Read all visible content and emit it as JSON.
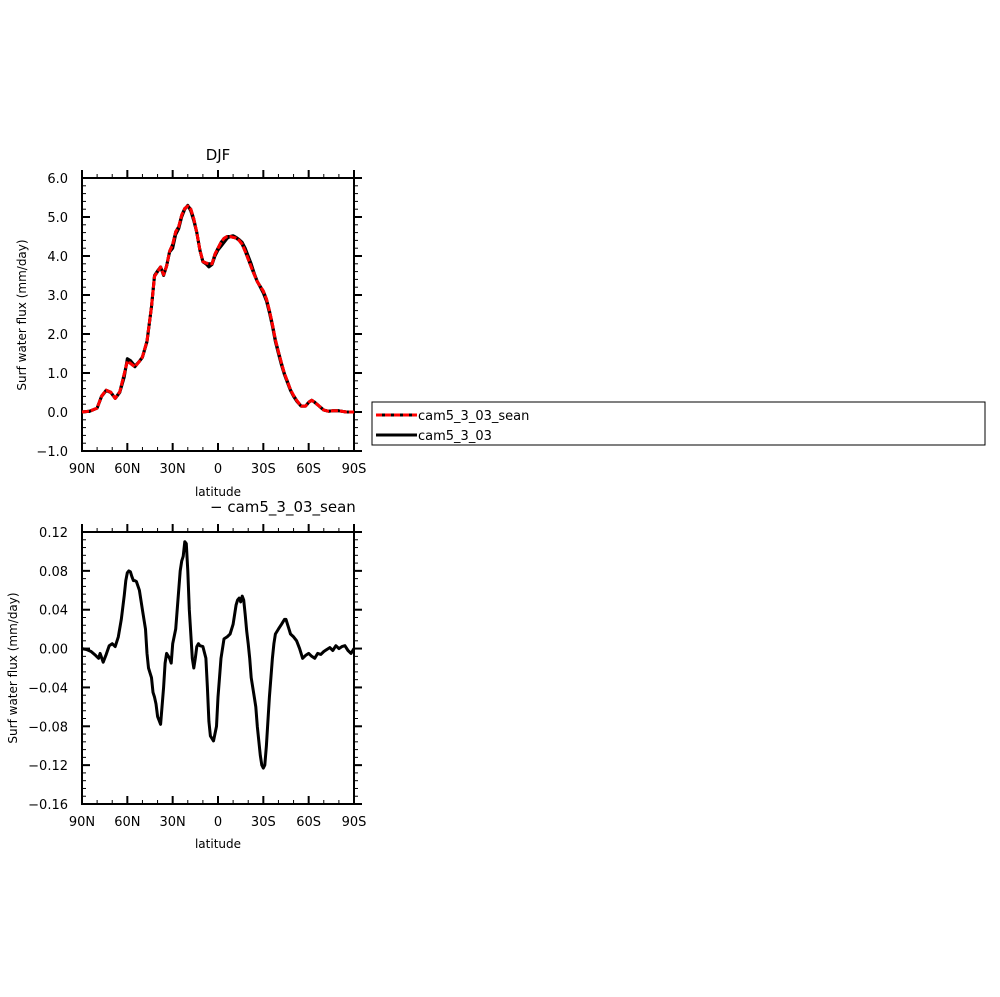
{
  "chart_data": [
    {
      "type": "line",
      "title": "DJF",
      "xlabel": "latitude",
      "ylabel": "Surf water flux (mm/day)",
      "xlim": [
        90,
        -90
      ],
      "ylim": [
        -1.0,
        6.0
      ],
      "x_ticks": [
        90,
        60,
        30,
        0,
        -30,
        -60,
        -90
      ],
      "x_tick_labels": [
        "90N",
        "60N",
        "30N",
        "0",
        "30S",
        "60S",
        "90S"
      ],
      "y_ticks": [
        -1.0,
        0.0,
        1.0,
        2.0,
        3.0,
        4.0,
        5.0,
        6.0
      ],
      "y_tick_labels": [
        "−1.0",
        "0.0",
        "1.0",
        "2.0",
        "3.0",
        "4.0",
        "5.0",
        "6.0"
      ],
      "grid": false,
      "legend_placement": "right",
      "x": [
        90,
        85,
        80,
        77,
        74,
        71,
        68,
        65,
        62,
        60,
        58,
        55,
        52,
        50,
        47,
        44,
        42,
        40,
        38,
        36,
        34,
        32,
        30,
        28,
        26,
        24,
        22,
        20,
        18,
        16,
        14,
        12,
        10,
        8,
        6,
        4,
        2,
        0,
        -2,
        -4,
        -6,
        -8,
        -10,
        -12,
        -14,
        -16,
        -18,
        -20,
        -22,
        -24,
        -26,
        -28,
        -30,
        -32,
        -34,
        -36,
        -38,
        -40,
        -42,
        -44,
        -46,
        -48,
        -50,
        -52,
        -55,
        -58,
        -60,
        -62,
        -64,
        -67,
        -70,
        -73,
        -76,
        -80,
        -85,
        -90
      ],
      "series": [
        {
          "name": "cam5_3_03",
          "color": "#000000",
          "dashed": false,
          "values": [
            0.0,
            0.02,
            0.1,
            0.4,
            0.55,
            0.5,
            0.35,
            0.5,
            0.9,
            1.37,
            1.32,
            1.18,
            1.3,
            1.4,
            1.8,
            2.7,
            3.5,
            3.62,
            3.72,
            3.5,
            3.75,
            4.1,
            4.2,
            4.55,
            4.7,
            5.0,
            5.2,
            5.3,
            5.15,
            4.9,
            4.6,
            4.15,
            3.85,
            3.8,
            3.72,
            3.78,
            4.0,
            4.15,
            4.25,
            4.35,
            4.45,
            4.5,
            4.52,
            4.48,
            4.42,
            4.35,
            4.2,
            4.0,
            3.8,
            3.55,
            3.35,
            3.2,
            3.05,
            2.85,
            2.55,
            2.2,
            1.8,
            1.5,
            1.2,
            0.95,
            0.75,
            0.55,
            0.4,
            0.28,
            0.15,
            0.15,
            0.25,
            0.3,
            0.25,
            0.15,
            0.05,
            0.02,
            0.03,
            0.03,
            0.0,
            0.0
          ]
        },
        {
          "name": "cam5_3_03_sean",
          "color": "#ff0000",
          "dashed": true,
          "values": [
            0.0,
            0.02,
            0.1,
            0.41,
            0.56,
            0.51,
            0.35,
            0.52,
            0.98,
            1.3,
            1.25,
            1.16,
            1.3,
            1.41,
            1.82,
            2.7,
            3.48,
            3.6,
            3.72,
            3.52,
            3.74,
            4.12,
            4.3,
            4.62,
            4.75,
            5.05,
            5.22,
            5.28,
            5.2,
            4.95,
            4.6,
            4.15,
            3.86,
            3.82,
            3.8,
            3.8,
            4.05,
            4.2,
            4.35,
            4.45,
            4.5,
            4.5,
            4.48,
            4.46,
            4.4,
            4.3,
            4.12,
            3.92,
            3.72,
            3.52,
            3.34,
            3.22,
            3.1,
            2.9,
            2.6,
            2.25,
            1.85,
            1.55,
            1.25,
            0.98,
            0.78,
            0.57,
            0.42,
            0.3,
            0.15,
            0.15,
            0.25,
            0.3,
            0.25,
            0.15,
            0.05,
            0.02,
            0.03,
            0.03,
            0.0,
            0.0
          ]
        }
      ]
    },
    {
      "type": "line",
      "title": "− cam5_3_03_sean",
      "xlabel": "latitude",
      "ylabel": "Surf water flux (mm/day)",
      "xlim": [
        90,
        -90
      ],
      "ylim": [
        -0.16,
        0.12
      ],
      "x_ticks": [
        90,
        60,
        30,
        0,
        -30,
        -60,
        -90
      ],
      "x_tick_labels": [
        "90N",
        "60N",
        "30N",
        "0",
        "30S",
        "60S",
        "90S"
      ],
      "y_ticks": [
        -0.16,
        -0.12,
        -0.08,
        -0.04,
        0.0,
        0.04,
        0.08,
        0.12
      ],
      "y_tick_labels": [
        "−0.16",
        "−0.12",
        "−0.08",
        "−0.04",
        "0.00",
        "0.04",
        "0.08",
        "0.12"
      ],
      "grid": false,
      "x": [
        90,
        87,
        84,
        81,
        79,
        78,
        76,
        74,
        72,
        70,
        68,
        66,
        64,
        62,
        61,
        60,
        59,
        58,
        57,
        56,
        55,
        54,
        52,
        50,
        48,
        47,
        46,
        44,
        43,
        42,
        41,
        40,
        38,
        36,
        35,
        34,
        32,
        31,
        30,
        28,
        27,
        26,
        25,
        24,
        23,
        22,
        21,
        20,
        19,
        18,
        17,
        16,
        15,
        14,
        13,
        12,
        10,
        8,
        7,
        6,
        5,
        3,
        1,
        0,
        -1,
        -2,
        -4,
        -6,
        -8,
        -10,
        -11,
        -12,
        -13,
        -14,
        -15,
        -16,
        -17,
        -18,
        -19,
        -20,
        -21,
        -22,
        -24,
        -25,
        -26,
        -27,
        -28,
        -29,
        -30,
        -31,
        -32,
        -33,
        -34,
        -35,
        -36,
        -37,
        -38,
        -40,
        -42,
        -44,
        -45,
        -46,
        -47,
        -48,
        -50,
        -52,
        -54,
        -56,
        -58,
        -60,
        -62,
        -64,
        -66,
        -68,
        -70,
        -72,
        -74,
        -76,
        -78,
        -80,
        -82,
        -84,
        -86,
        -88,
        -90
      ],
      "series": [
        {
          "name": "cam5_3_03_sean",
          "color": "#000000",
          "dashed": false,
          "values": [
            0.0,
            -0.001,
            -0.003,
            -0.007,
            -0.01,
            -0.005,
            -0.014,
            -0.006,
            0.003,
            0.005,
            0.002,
            0.012,
            0.03,
            0.055,
            0.07,
            0.078,
            0.08,
            0.079,
            0.074,
            0.07,
            0.07,
            0.069,
            0.06,
            0.04,
            0.02,
            -0.005,
            -0.02,
            -0.03,
            -0.045,
            -0.05,
            -0.057,
            -0.07,
            -0.078,
            -0.04,
            -0.015,
            -0.005,
            -0.01,
            -0.015,
            0.005,
            0.02,
            0.04,
            0.06,
            0.08,
            0.09,
            0.095,
            0.11,
            0.108,
            0.08,
            0.04,
            0.015,
            -0.01,
            -0.02,
            -0.01,
            0.002,
            0.005,
            0.003,
            0.002,
            -0.01,
            -0.04,
            -0.075,
            -0.09,
            -0.095,
            -0.08,
            -0.05,
            -0.03,
            -0.01,
            0.01,
            0.012,
            0.015,
            0.025,
            0.035,
            0.045,
            0.05,
            0.052,
            0.048,
            0.054,
            0.05,
            0.035,
            0.018,
            0.005,
            -0.01,
            -0.03,
            -0.05,
            -0.06,
            -0.08,
            -0.095,
            -0.11,
            -0.12,
            -0.123,
            -0.12,
            -0.1,
            -0.075,
            -0.05,
            -0.03,
            -0.01,
            0.005,
            0.015,
            0.02,
            0.025,
            0.03,
            0.03,
            0.025,
            0.02,
            0.015,
            0.012,
            0.008,
            0.0,
            -0.01,
            -0.007,
            -0.005,
            -0.008,
            -0.01,
            -0.005,
            -0.006,
            -0.003,
            -0.001,
            0.001,
            -0.002,
            0.003,
            0.0,
            0.002,
            0.003,
            -0.002,
            -0.005,
            0.0
          ]
        }
      ]
    }
  ]
}
